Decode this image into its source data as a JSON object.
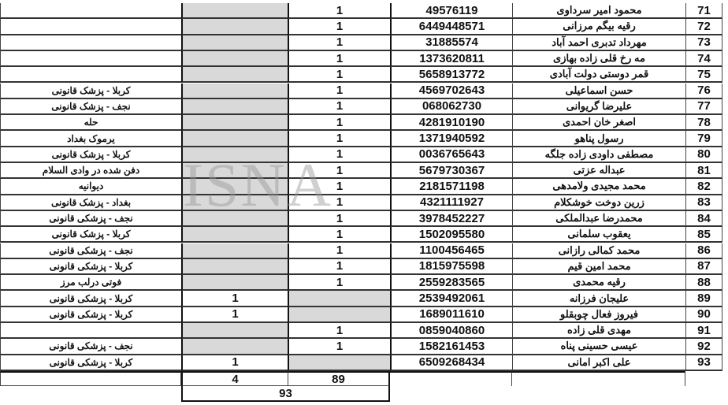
{
  "watermark": "ISNA",
  "rows": [
    {
      "idx": "71",
      "name": "محمود امیر سرداوی",
      "id": "49576119",
      "a": "",
      "b": "1",
      "note": "",
      "shaded": "a"
    },
    {
      "idx": "72",
      "name": "رقیه بیگم مرزانی",
      "id": "6449448571",
      "a": "",
      "b": "1",
      "note": "",
      "shaded": "a"
    },
    {
      "idx": "73",
      "name": "مهرداد تدبری احمد آباد",
      "id": "31885574",
      "a": "",
      "b": "1",
      "note": "",
      "shaded": "a"
    },
    {
      "idx": "74",
      "name": "مه رخ قلی زاده بهازی",
      "id": "1373620811",
      "a": "",
      "b": "1",
      "note": "",
      "shaded": "a"
    },
    {
      "idx": "75",
      "name": "قمر دوستی دولت آبادی",
      "id": "5658913772",
      "a": "",
      "b": "1",
      "note": "",
      "shaded": "a"
    },
    {
      "idx": "76",
      "name": "حسن اسماعیلی",
      "id": "4569702643",
      "a": "",
      "b": "1",
      "note": "کربلا - پزشک قانونی",
      "shaded": "a"
    },
    {
      "idx": "77",
      "name": "علیرضا گریوانی",
      "id": "068062730",
      "a": "",
      "b": "1",
      "note": "نجف - پزشک قانونی",
      "shaded": "a"
    },
    {
      "idx": "78",
      "name": "اصغر خان احمدی",
      "id": "4281910190",
      "a": "",
      "b": "1",
      "note": "حله",
      "shaded": "a"
    },
    {
      "idx": "79",
      "name": "رسول پناهو",
      "id": "1371940592",
      "a": "",
      "b": "1",
      "note": "یرموک بغداد",
      "shaded": "a"
    },
    {
      "idx": "80",
      "name": "مصطفی داودی زاده جلگه",
      "id": "0036765643",
      "a": "",
      "b": "1",
      "note": "کربلا - پزشک قانونی",
      "shaded": "a"
    },
    {
      "idx": "81",
      "name": "عبداله عزتی",
      "id": "5679730367",
      "a": "",
      "b": "1",
      "note": "دفن شده در وادی السلام",
      "shaded": "a"
    },
    {
      "idx": "82",
      "name": "محمد مجیدی ولامدهی",
      "id": "2181571198",
      "a": "",
      "b": "1",
      "note": "دیوانیه",
      "shaded": "a"
    },
    {
      "idx": "83",
      "name": "زرین دوخت خوشکلام",
      "id": "4321111927",
      "a": "",
      "b": "1",
      "note": "بغداد - پزشک قانونی",
      "shaded": "a"
    },
    {
      "idx": "84",
      "name": "محمدرضا عبدالملکی",
      "id": "3978452227",
      "a": "",
      "b": "1",
      "note": "نجف - پزشکی قانونی",
      "shaded": "a"
    },
    {
      "idx": "85",
      "name": "یعقوب سلمانی",
      "id": "1502095580",
      "a": "",
      "b": "1",
      "note": "کربلا - پزشک قانونی",
      "shaded": "a"
    },
    {
      "idx": "86",
      "name": "محمد کمالی رازانی",
      "id": "1100456465",
      "a": "",
      "b": "1",
      "note": "نجف - پزشکی قانونی",
      "shaded": "a"
    },
    {
      "idx": "87",
      "name": "محمد امین قیم",
      "id": "1815975598",
      "a": "",
      "b": "1",
      "note": "کربلا - پزشکی قانونی",
      "shaded": "a"
    },
    {
      "idx": "88",
      "name": "رقیه محمدی",
      "id": "2559283565",
      "a": "",
      "b": "1",
      "note": "فوتی درلب مرز",
      "shaded": "a"
    },
    {
      "idx": "89",
      "name": "علیجان فرزانه",
      "id": "2539492061",
      "a": "1",
      "b": "",
      "note": "کربلا - پزشکی قانونی",
      "shaded": "b"
    },
    {
      "idx": "90",
      "name": "فیروز فعال چوبقلو",
      "id": "1689011610",
      "a": "1",
      "b": "",
      "note": "کربلا - پزشکی قانونی",
      "shaded": "b"
    },
    {
      "idx": "91",
      "name": "مهدی قلی زاده",
      "id": "0859040860",
      "a": "",
      "b": "1",
      "note": "",
      "shaded": "a"
    },
    {
      "idx": "92",
      "name": "عیسی حسینی پناه",
      "id": "1582161453",
      "a": "",
      "b": "1",
      "note": "نجف - پزشکی قانونی",
      "shaded": "a"
    },
    {
      "idx": "93",
      "name": "علی اکبر امانی",
      "id": "6509268434",
      "a": "1",
      "b": "",
      "note": "کربلا - پزشکی قانونی",
      "shaded": "b"
    }
  ],
  "totals": {
    "a": "4",
    "b": "89",
    "grand": "93"
  },
  "colors": {
    "shade": "#d9d9d9",
    "border": "#333333"
  }
}
